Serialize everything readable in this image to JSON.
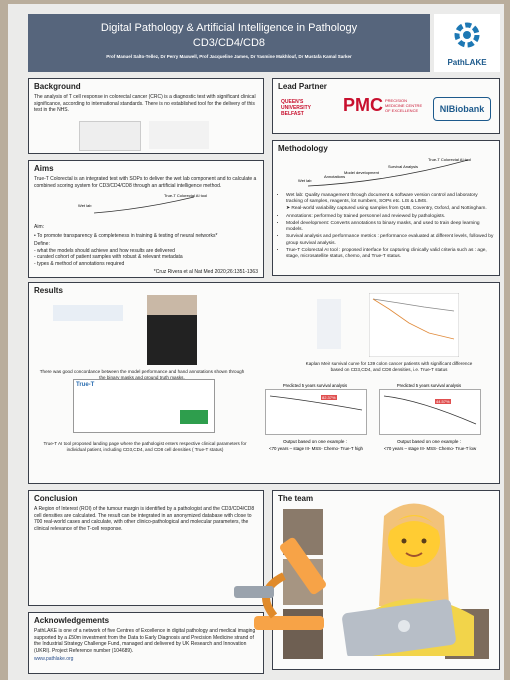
{
  "header": {
    "title": "Digital Pathology & Artificial Intelligence in Pathology",
    "subtitle": "CD3/CD4/CD8",
    "authors": "Prof Manuel Salto-Tellez, Dr Perry Maxwell, Prof Jacqueline James, Dr Yasmine Makhlouf, Dr Mustafa Kamal Sarker",
    "logo": "PathLAKE"
  },
  "background": {
    "heading": "Background",
    "text": "The analysis of T cell response in colorectal cancer (CRC) is a diagnostic test with significant clinical significance, according to international standards. There is no established tool for the delivery of this test in the NHS."
  },
  "lead_partner": {
    "heading": "Lead Partner",
    "qub": "QUEEN'S UNIVERSITY BELFAST",
    "pmc": "PMC",
    "pmc_full": "PRECISION MEDICINE CENTRE OF EXCELLENCE",
    "nib": "NIBiobank"
  },
  "aims": {
    "heading": "Aims",
    "intro": "True-T Colorectal is an integrated test with SOPs to deliver the wet lab component and to calculate a combined scoring system for CD3/CD4/CD8 through an artificial intelligence method.",
    "diagram": [
      "Wet lab",
      "True-T Colorectal AI tool"
    ],
    "aim_label": "Aim:",
    "aim": "• To promote transparency & completeness in training & testing of neural networks*",
    "define_label": "Define:",
    "define": [
      "- what the models should achieve and how results are delivered",
      "- curated cohort of patient samples with robust & relevant metadata",
      "- types & method of annotations required"
    ],
    "reference": "*Cruz Rivera et al Nat Med 2020;26:1351-1363"
  },
  "methodology": {
    "heading": "Methodology",
    "diagram": [
      "Wet lab",
      "Annotations",
      "Model development",
      "Survival Analysis",
      "True-T Colorectal AI tool"
    ],
    "bullets": [
      "Wet lab: Quality management through document & software version control and laboratory tracking of samples, reagents, lot numbers, SOPs etc. LIS & LIMS.",
      "➤ Real-world variability captured using samples from QUB, Coventry, Oxford, and Nottingham.",
      "Annotations: performed by trained personnel and reviewed by pathologists.",
      "Model development: Converts annotations to binary masks, and used to train deep learning models.",
      "Survival analysis and performance metrics : performance evaluated at different levels, followed by group survival analysis.",
      "True-T Colorectal AI tool : proposed interface for capturing clinically valid criteria such as : age, stage, microsatellite status, chemo, and True-T status."
    ]
  },
  "results": {
    "heading": "Results",
    "caption_masks": "There was good concordance between the model performance and hand annotations shown through the binary masks and ground truth masks.",
    "caption_km": "Kaplan Meir survival curve for 139 colon cancer patients with significant difference based on CD3,CD4, and CD8 densities, i.e. True-T status",
    "caption_tool": "True-T AI tool proposed landing page where the pathologist enters respective clinical parameters for individual patient, including CD3,CD4, and CD8 cell densities ( True-T status)",
    "tool_name": "True-T",
    "plots": [
      {
        "title": "Predicted 5 years survival analysis",
        "value_label": "82.37%",
        "output": "Output based on one example :",
        "example": "<70 years – stage III- MSS- Chemo- True-T high"
      },
      {
        "title": "Predicted 5 years survival analysis",
        "value_label": "44.57%",
        "output": "Output based on one example :",
        "example": "<70 years – stage III- MSS- Chemo- True-T low"
      }
    ]
  },
  "conclusion": {
    "heading": "Conclusion",
    "text": "A Region of Interest (ROI) of the tumour margin is identified by a pathologist and the CD3/CD4/CD8 cell densities are calculated. The result can be integrated in an anonymized database with close to 700 real-world cases and calculate, with other clinico-pathological and molecular parameters, the clinical relevance of the T-cell response."
  },
  "team": {
    "heading": "The team"
  },
  "acknowledgements": {
    "heading": "Acknowledgements",
    "text": "PathLAKE is one of a network of five Centres of Excellence in digital pathology and medical imaging supported by a £50m investment from the Data to Early Diagnosis and Precision Medicine strand of the Industrial Strategy Challenge Fund, managed and delivered by UK Research and Innovation (UKRI). Project Reference number (104689).",
    "url": "www.pathlake.org"
  }
}
